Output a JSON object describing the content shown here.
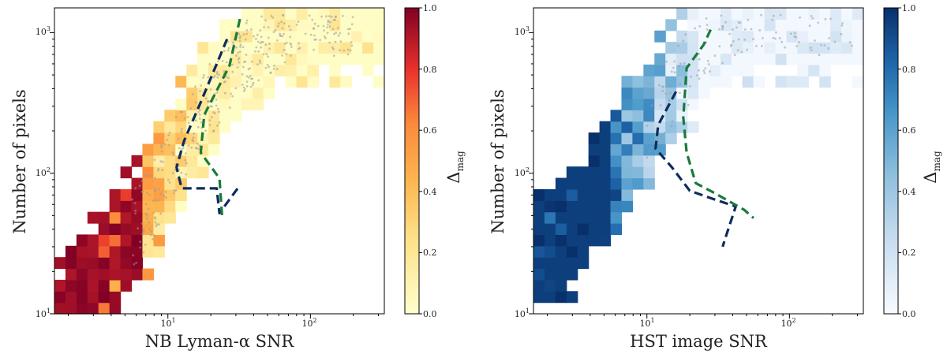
{
  "chart_data": [
    {
      "type": "heatmap",
      "title": "",
      "xlabel": "NB Lyman-α SNR",
      "ylabel": "Number of pixels",
      "x_scale": "log",
      "y_scale": "log",
      "xlim": [
        1.6,
        330
      ],
      "ylim": [
        10,
        1500
      ],
      "x_ticks": [
        {
          "value": 10,
          "base": "10",
          "exp": "1"
        },
        {
          "value": 100,
          "base": "10",
          "exp": "2"
        }
      ],
      "y_ticks": [
        {
          "value": 10,
          "base": "10",
          "exp": "1"
        },
        {
          "value": 100,
          "base": "10",
          "exp": "2"
        },
        {
          "value": 1000,
          "base": "10",
          "exp": "3"
        }
      ],
      "colormap": "YlOrRd",
      "colorbar": {
        "label_main": "Δ",
        "label_sub": "mag",
        "range": [
          0,
          1
        ],
        "ticks": [
          "0.0",
          "0.2",
          "0.4",
          "0.6",
          "0.8",
          "1.0"
        ]
      },
      "grid": false,
      "ridge": {
        "x": [
          2.0,
          3.5,
          7,
          12,
          22,
          40,
          80,
          300
        ],
        "y": [
          10,
          25,
          60,
          170,
          450,
          900,
          1500,
          1500
        ]
      },
      "contours": [
        {
          "name": "blue-dashed",
          "color": "#0b2c5e",
          "points": [
            [
              26,
              900
            ],
            [
              17,
              320
            ],
            [
              13,
              170
            ],
            [
              11.5,
              110
            ],
            [
              12.5,
              78
            ],
            [
              22,
              78
            ],
            [
              23,
              52
            ],
            [
              32,
              82
            ]
          ]
        },
        {
          "name": "green-dashed",
          "color": "#1a7a3a",
          "points": [
            [
              32,
              1250
            ],
            [
              27,
              580
            ],
            [
              18,
              260
            ],
            [
              17,
              140
            ],
            [
              23,
              92
            ],
            [
              24,
              50
            ]
          ]
        }
      ],
      "scatter_count": 430,
      "cells_ncols": 30,
      "cells_nrows": 27,
      "seed": 11
    },
    {
      "type": "heatmap",
      "title": "",
      "xlabel": "HST image SNR",
      "ylabel": "Number of pixels",
      "x_scale": "log",
      "y_scale": "log",
      "xlim": [
        1.6,
        330
      ],
      "ylim": [
        10,
        1500
      ],
      "x_ticks": [
        {
          "value": 10,
          "base": "10",
          "exp": "1"
        },
        {
          "value": 100,
          "base": "10",
          "exp": "2"
        }
      ],
      "y_ticks": [
        {
          "value": 10,
          "base": "10",
          "exp": "1"
        },
        {
          "value": 100,
          "base": "10",
          "exp": "2"
        },
        {
          "value": 1000,
          "base": "10",
          "exp": "3"
        }
      ],
      "colormap": "Blues",
      "colorbar": {
        "label_main": "Δ",
        "label_sub": "mag",
        "range": [
          0,
          1
        ],
        "ticks": [
          "0.0",
          "0.2",
          "0.4",
          "0.6",
          "0.8",
          "1.0"
        ]
      },
      "grid": false,
      "ridge": {
        "x": [
          1.6,
          3,
          6,
          10,
          17,
          30,
          70,
          330
        ],
        "y": [
          28,
          45,
          130,
          280,
          560,
          1100,
          1500,
          1500
        ]
      },
      "contours": [
        {
          "name": "blue-dashed",
          "color": "#0b2c5e",
          "points": [
            [
              16,
              380
            ],
            [
              12,
              220
            ],
            [
              11.5,
              150
            ],
            [
              15,
              110
            ],
            [
              20,
              75
            ],
            [
              30,
              65
            ],
            [
              42,
              58
            ],
            [
              36,
              36
            ],
            [
              34,
              30
            ]
          ]
        },
        {
          "name": "green-dashed",
          "color": "#1a7a3a",
          "points": [
            [
              28,
              1050
            ],
            [
              25,
              820
            ],
            [
              19,
              560
            ],
            [
              18,
              250
            ],
            [
              19,
              140
            ],
            [
              22,
              85
            ],
            [
              30,
              72
            ],
            [
              48,
              55
            ],
            [
              56,
              48
            ]
          ]
        }
      ],
      "scatter_count": 180,
      "cells_ncols": 30,
      "cells_nrows": 27,
      "seed": 29
    }
  ]
}
